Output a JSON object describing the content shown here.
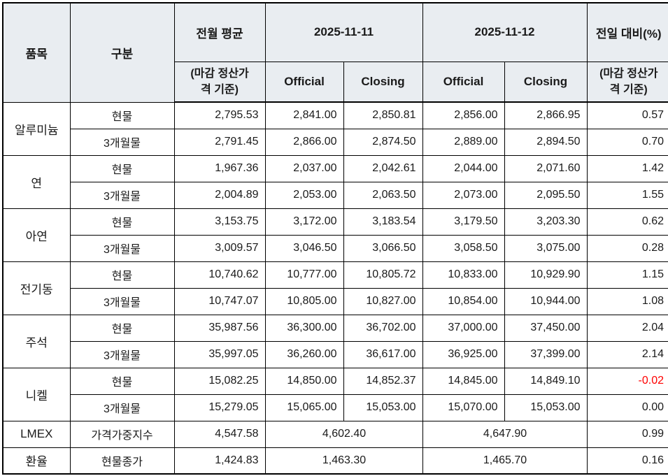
{
  "colors": {
    "header_bg": "#e9edf1",
    "negative_value": "#ff0000",
    "border": "#000000"
  },
  "table": {
    "header": {
      "item": "품목",
      "category": "구분",
      "prev_avg": "전월 평균",
      "prev_avg_sub_line1": "(마감 정산가",
      "prev_avg_sub_line2": "격 기준)",
      "date1": "2025-11-11",
      "date2": "2025-11-12",
      "official": "Official",
      "closing": "Closing",
      "change": "전일 대비(%)",
      "change_sub_line1": "(마감 정산가",
      "change_sub_line2": "격 기준)"
    },
    "groups": [
      {
        "item": "알루미늄",
        "rows": [
          {
            "category": "현물",
            "values": [
              "2,795.53",
              "2,841.00",
              "2,850.81",
              "2,856.00",
              "2,866.95",
              "0.57"
            ]
          },
          {
            "category": "3개월물",
            "values": [
              "2,791.45",
              "2,866.00",
              "2,874.50",
              "2,889.00",
              "2,894.50",
              "0.70"
            ]
          }
        ]
      },
      {
        "item": "연",
        "rows": [
          {
            "category": "현물",
            "values": [
              "1,967.36",
              "2,037.00",
              "2,042.61",
              "2,044.00",
              "2,071.60",
              "1.42"
            ]
          },
          {
            "category": "3개월물",
            "values": [
              "2,004.89",
              "2,053.00",
              "2,063.50",
              "2,073.00",
              "2,095.50",
              "1.55"
            ]
          }
        ]
      },
      {
        "item": "아연",
        "rows": [
          {
            "category": "현물",
            "values": [
              "3,153.75",
              "3,172.00",
              "3,183.54",
              "3,179.50",
              "3,203.30",
              "0.62"
            ]
          },
          {
            "category": "3개월물",
            "values": [
              "3,009.57",
              "3,046.50",
              "3,066.50",
              "3,058.50",
              "3,075.00",
              "0.28"
            ]
          }
        ]
      },
      {
        "item": "전기동",
        "rows": [
          {
            "category": "현물",
            "values": [
              "10,740.62",
              "10,777.00",
              "10,805.72",
              "10,833.00",
              "10,929.90",
              "1.15"
            ]
          },
          {
            "category": "3개월물",
            "values": [
              "10,747.07",
              "10,805.00",
              "10,827.00",
              "10,854.00",
              "10,944.00",
              "1.08"
            ]
          }
        ]
      },
      {
        "item": "주석",
        "rows": [
          {
            "category": "현물",
            "values": [
              "35,987.56",
              "36,300.00",
              "36,702.00",
              "37,000.00",
              "37,450.00",
              "2.04"
            ]
          },
          {
            "category": "3개월물",
            "values": [
              "35,997.05",
              "36,260.00",
              "36,617.00",
              "36,925.00",
              "37,399.00",
              "2.14"
            ]
          }
        ]
      },
      {
        "item": "니켈",
        "rows": [
          {
            "category": "현물",
            "values": [
              "15,082.25",
              "14,850.00",
              "14,852.37",
              "14,845.00",
              "14,849.10",
              "-0.02"
            ]
          },
          {
            "category": "3개월물",
            "values": [
              "15,279.05",
              "15,065.00",
              "15,053.00",
              "15,070.00",
              "15,053.00",
              "0.00"
            ]
          }
        ]
      }
    ],
    "summary_rows": [
      {
        "item": "LMEX",
        "category": "가격가중지수",
        "prev_avg": "4,547.58",
        "date1_value": "4,602.40",
        "date2_value": "4,647.90",
        "change": "0.99"
      },
      {
        "item": "환율",
        "category": "현물종가",
        "prev_avg": "1,424.83",
        "date1_value": "1,463.30",
        "date2_value": "1,465.70",
        "change": "0.16"
      }
    ]
  }
}
